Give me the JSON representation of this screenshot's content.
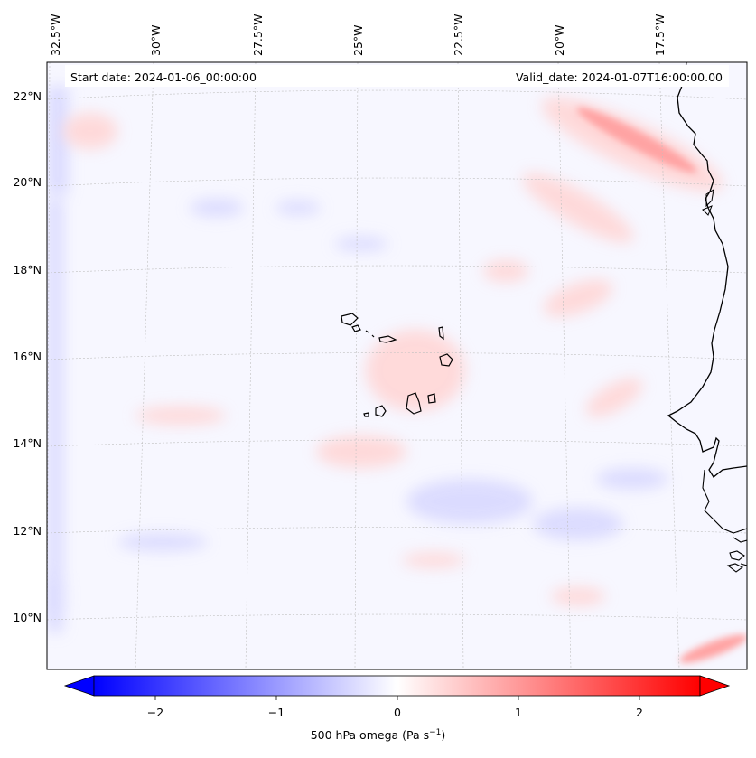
{
  "map": {
    "header_left": "Start date: 2024-01-06_00:00:00",
    "header_right": "Valid_date: 2024-01-07T16:00:00.00",
    "longitude_labels": [
      "32.5°W",
      "30°W",
      "27.5°W",
      "25°W",
      "22.5°W",
      "20°W",
      "17.5°W"
    ],
    "latitude_labels": [
      "22°N",
      "20°N",
      "18°N",
      "16°N",
      "14°N",
      "12°N",
      "10°N"
    ],
    "projection_frame": "lon 33°W–15.5°E, lat 9°N–23°N",
    "field_colors": {
      "background": "#f7f7ff",
      "positive_band": "#ffd9d9",
      "negative_band": "#e6e6ff",
      "coastline": "#000000"
    }
  },
  "colorbar": {
    "title": "500 hPa omega (Pa s",
    "title_exponent": "−1",
    "title_close": ")",
    "ticks": [
      "−2",
      "−1",
      "0",
      "1",
      "2"
    ],
    "range": [
      -2.75,
      2.75
    ],
    "cmap": "bwr",
    "extend": "both"
  }
}
